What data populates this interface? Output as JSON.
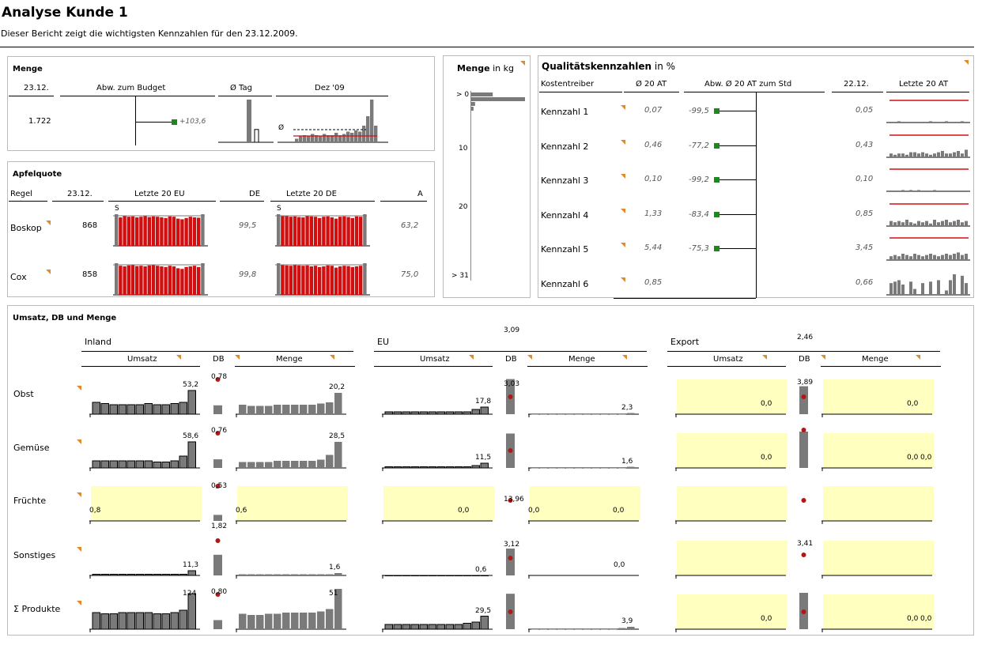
{
  "page": {
    "title": "Analyse Kunde 1",
    "subtitle": "Dieser Bericht zeigt die wichtigsten  Kennzahlen für den 23.12.2009."
  },
  "colors": {
    "bar": "#7a7a7a",
    "red": "#d01010",
    "dot": "#b01818",
    "green": "#1a8a1a",
    "yellow": "#ffffc0",
    "orange": "#e08a2e"
  },
  "menge": {
    "title": "Menge",
    "headers": [
      "23.12.",
      "Abw. zum Budget",
      "Ø Tag",
      "Dez '09"
    ],
    "value": "1.722",
    "deviation_label": "+103,6",
    "deviation": 103.6,
    "avg_bars": [
      100,
      30
    ],
    "dez_avg_symbol": "Ø",
    "dez_bars": [
      3,
      5,
      6,
      5,
      7,
      6,
      5,
      7,
      6,
      6,
      8,
      6,
      7,
      9,
      8,
      10,
      9,
      14,
      22,
      36,
      14
    ]
  },
  "apfel": {
    "title": "Apfelquote",
    "headers": [
      "Regel",
      "23.12.",
      "Letzte 20 EU",
      "DE",
      "Letzte 20 DE",
      "A"
    ],
    "s_label": "S",
    "rows": [
      {
        "name": "Boskop",
        "value": "868",
        "de": "99,5",
        "a": "63,2",
        "eu_bars": [
          90,
          95,
          92,
          93,
          90,
          92,
          94,
          91,
          93,
          92,
          90,
          88,
          93,
          92,
          86,
          84,
          88,
          92,
          90,
          89
        ],
        "de_bars": [
          95,
          94,
          92,
          93,
          91,
          90,
          94,
          93,
          92,
          88,
          92,
          93,
          90,
          86,
          92,
          93,
          91,
          88,
          93,
          92
        ]
      },
      {
        "name": "Cox",
        "value": "858",
        "de": "99,8",
        "a": "75,0",
        "eu_bars": [
          92,
          90,
          93,
          94,
          91,
          92,
          90,
          93,
          95,
          92,
          90,
          88,
          92,
          90,
          84,
          82,
          88,
          90,
          92,
          88
        ],
        "de_bars": [
          95,
          93,
          92,
          94,
          93,
          92,
          93,
          90,
          92,
          88,
          90,
          93,
          92,
          86,
          90,
          92,
          91,
          88,
          90,
          92
        ]
      }
    ]
  },
  "mengekg": {
    "title": "Menge",
    "unit": "in kg",
    "ticks": [
      "> 0",
      "10",
      "20",
      "> 31"
    ],
    "bars": [
      28,
      70,
      5,
      3
    ]
  },
  "qual": {
    "title": "Qualitätskennzahlen",
    "unit": "in %",
    "headers": [
      "Kostentreiber",
      "Ø 20 AT",
      "Abw. Ø 20 AT zum Std",
      "22.12.",
      "Letzte 20 AT"
    ],
    "rows": [
      {
        "name": "Kennzahl 1",
        "avg": "0,07",
        "dev": "-99,5",
        "last": "0,05",
        "spark": [
          0,
          0,
          1,
          0,
          0,
          0,
          0,
          0,
          0,
          0,
          1,
          0,
          0,
          0,
          1,
          0,
          0,
          0,
          1,
          0
        ]
      },
      {
        "name": "Kennzahl 2",
        "avg": "0,46",
        "dev": "-77,2",
        "last": "0,43",
        "spark": [
          3,
          2,
          3,
          3,
          2,
          4,
          4,
          3,
          4,
          3,
          2,
          3,
          4,
          5,
          3,
          3,
          4,
          5,
          3,
          6
        ]
      },
      {
        "name": "Kennzahl 3",
        "avg": "0,10",
        "dev": "-99,2",
        "last": "0,10",
        "spark": [
          0,
          0,
          0,
          1,
          0,
          1,
          0,
          1,
          0,
          0,
          0,
          1,
          0,
          0,
          0,
          0,
          0,
          0,
          0,
          0
        ]
      },
      {
        "name": "Kennzahl 4",
        "avg": "1,33",
        "dev": "-83,4",
        "last": "0,85",
        "spark": [
          4,
          3,
          4,
          3,
          5,
          3,
          2,
          4,
          3,
          4,
          2,
          5,
          3,
          4,
          5,
          3,
          4,
          5,
          3,
          4
        ]
      },
      {
        "name": "Kennzahl 5",
        "avg": "5,44",
        "dev": "-75,3",
        "last": "3,45",
        "spark": [
          3,
          4,
          3,
          5,
          4,
          3,
          5,
          4,
          3,
          4,
          5,
          4,
          3,
          4,
          5,
          4,
          5,
          6,
          4,
          5
        ]
      },
      {
        "name": "Kennzahl 6",
        "avg": "0,85",
        "dev": "",
        "last": "0,66",
        "spark": [
          8,
          9,
          10,
          7,
          0,
          9,
          4,
          0,
          8,
          0,
          9,
          0,
          10,
          0,
          3,
          10,
          14,
          0,
          13,
          8
        ]
      }
    ]
  },
  "umsatz": {
    "title": "Umsatz, DB und Menge",
    "groups": [
      "Inland",
      "EU",
      "Export"
    ],
    "subheaders": [
      "Umsatz",
      "DB",
      "Menge"
    ],
    "rows": [
      "Obst",
      "Gemüse",
      "Früchte",
      "Sonstiges",
      "Σ Produkte"
    ],
    "cells": [
      {
        "g": 0,
        "r": 0,
        "type": "umsatz",
        "bars": [
          10,
          9,
          8,
          8,
          8,
          8,
          9,
          8,
          8,
          9,
          10,
          20
        ],
        "label": "53,2"
      },
      {
        "g": 0,
        "r": 0,
        "type": "db",
        "label": "0,78"
      },
      {
        "g": 0,
        "r": 0,
        "type": "menge",
        "bars": [
          8,
          7,
          7,
          7,
          8,
          8,
          8,
          8,
          8,
          9,
          10,
          18
        ],
        "label": "20,2"
      },
      {
        "g": 0,
        "r": 1,
        "type": "umsatz",
        "bars": [
          6,
          6,
          6,
          6,
          6,
          6,
          6,
          5,
          5,
          6,
          10,
          22
        ],
        "label": "58,6"
      },
      {
        "g": 0,
        "r": 1,
        "type": "db",
        "label": "0,76"
      },
      {
        "g": 0,
        "r": 1,
        "type": "menge",
        "bars": [
          5,
          5,
          5,
          5,
          6,
          6,
          6,
          6,
          6,
          7,
          11,
          22
        ],
        "label": "28,5"
      },
      {
        "g": 0,
        "r": 2,
        "type": "umsatz",
        "bars": [],
        "label": "0,8"
      },
      {
        "g": 0,
        "r": 2,
        "type": "db",
        "label": "0,53"
      },
      {
        "g": 0,
        "r": 2,
        "type": "menge",
        "bars": [],
        "label": "0,6"
      },
      {
        "g": 0,
        "r": 3,
        "type": "umsatz",
        "bars": [
          1,
          1,
          1,
          1,
          1,
          1,
          1,
          1,
          1,
          1,
          1,
          4
        ],
        "label": "11,3"
      },
      {
        "g": 0,
        "r": 3,
        "type": "db",
        "label": "1,82"
      },
      {
        "g": 0,
        "r": 3,
        "type": "menge",
        "bars": [
          1,
          1,
          1,
          1,
          1,
          1,
          1,
          1,
          1,
          1,
          1,
          2
        ],
        "label": "1,6"
      },
      {
        "g": 0,
        "r": 4,
        "type": "umsatz",
        "bars": [
          14,
          13,
          13,
          14,
          14,
          14,
          14,
          13,
          13,
          14,
          16,
          30
        ],
        "label": "124"
      },
      {
        "g": 0,
        "r": 4,
        "type": "db",
        "label": "0,80"
      },
      {
        "g": 0,
        "r": 4,
        "type": "menge",
        "bars": [
          13,
          12,
          12,
          13,
          13,
          14,
          14,
          14,
          14,
          15,
          17,
          34
        ],
        "label": "51"
      },
      {
        "g": 1,
        "r": 0,
        "type": "umsatz",
        "bars": [
          2,
          2,
          2,
          2,
          2,
          2,
          2,
          2,
          2,
          2,
          4,
          6
        ],
        "label": "17,8"
      },
      {
        "g": 1,
        "r": 0,
        "type": "db",
        "label": "3,09"
      },
      {
        "g": 1,
        "r": 0,
        "type": "menge",
        "bars": [
          0,
          0,
          0,
          0,
          0,
          0,
          0,
          0,
          0,
          0,
          0,
          1
        ],
        "label": "2,3"
      },
      {
        "g": 1,
        "r": 1,
        "type": "umsatz",
        "bars": [
          1,
          1,
          1,
          1,
          1,
          1,
          1,
          1,
          1,
          1,
          2,
          4
        ],
        "label": "11,5"
      },
      {
        "g": 1,
        "r": 1,
        "type": "db",
        "label": "3,03"
      },
      {
        "g": 1,
        "r": 1,
        "type": "menge",
        "bars": [
          0,
          0,
          0,
          0,
          0,
          0,
          0,
          0,
          0,
          0,
          0,
          1
        ],
        "label": "1,6"
      },
      {
        "g": 1,
        "r": 2,
        "type": "umsatz",
        "bars": [],
        "label": "0,0"
      },
      {
        "g": 1,
        "r": 2,
        "type": "db",
        "label": ""
      },
      {
        "g": 1,
        "r": 2,
        "type": "menge",
        "bars": [],
        "label": "0,0"
      },
      {
        "g": 1,
        "r": 2,
        "type": "menge2",
        "label": "0,0"
      },
      {
        "g": 1,
        "r": 3,
        "type": "umsatz",
        "bars": [
          0,
          0,
          0,
          0,
          0,
          0,
          0,
          0,
          0,
          0,
          0,
          0
        ],
        "label": "0,6"
      },
      {
        "g": 1,
        "r": 3,
        "type": "db",
        "label": "13,96"
      },
      {
        "g": 1,
        "r": 3,
        "type": "menge",
        "bars": [],
        "label": "0,0"
      },
      {
        "g": 1,
        "r": 4,
        "type": "umsatz",
        "bars": [
          4,
          4,
          4,
          4,
          4,
          4,
          4,
          4,
          4,
          5,
          6,
          11
        ],
        "label": "29,5"
      },
      {
        "g": 1,
        "r": 4,
        "type": "db",
        "label": "3,12"
      },
      {
        "g": 1,
        "r": 4,
        "type": "menge",
        "bars": [
          0,
          0,
          0,
          0,
          0,
          0,
          0,
          0,
          0,
          0,
          1,
          2
        ],
        "label": "3,9"
      },
      {
        "g": 2,
        "r": 0,
        "type": "umsatz",
        "bars": [],
        "label": "0,0"
      },
      {
        "g": 2,
        "r": 0,
        "type": "db",
        "label": "2,46"
      },
      {
        "g": 2,
        "r": 0,
        "type": "menge",
        "bars": [],
        "label": "0,0"
      },
      {
        "g": 2,
        "r": 1,
        "type": "umsatz",
        "bars": [],
        "label": "0,0"
      },
      {
        "g": 2,
        "r": 1,
        "type": "db",
        "label": "3,89"
      },
      {
        "g": 2,
        "r": 1,
        "type": "menge",
        "bars": [],
        "label": "0,0"
      },
      {
        "g": 2,
        "r": 1,
        "type": "menge2",
        "label": "0,0"
      },
      {
        "g": 2,
        "r": 2,
        "type": "umsatz",
        "bars": [],
        "label": ""
      },
      {
        "g": 2,
        "r": 2,
        "type": "db",
        "label": ""
      },
      {
        "g": 2,
        "r": 2,
        "type": "menge",
        "bars": [],
        "label": ""
      },
      {
        "g": 2,
        "r": 3,
        "type": "umsatz",
        "bars": [],
        "label": ""
      },
      {
        "g": 2,
        "r": 3,
        "type": "db",
        "label": ""
      },
      {
        "g": 2,
        "r": 3,
        "type": "menge",
        "bars": [],
        "label": ""
      },
      {
        "g": 2,
        "r": 4,
        "type": "umsatz",
        "bars": [],
        "label": "0,0"
      },
      {
        "g": 2,
        "r": 4,
        "type": "db",
        "label": "3,41"
      },
      {
        "g": 2,
        "r": 4,
        "type": "menge",
        "bars": [],
        "label": "0,0"
      },
      {
        "g": 2,
        "r": 4,
        "type": "menge2",
        "label": "0,0"
      }
    ]
  }
}
